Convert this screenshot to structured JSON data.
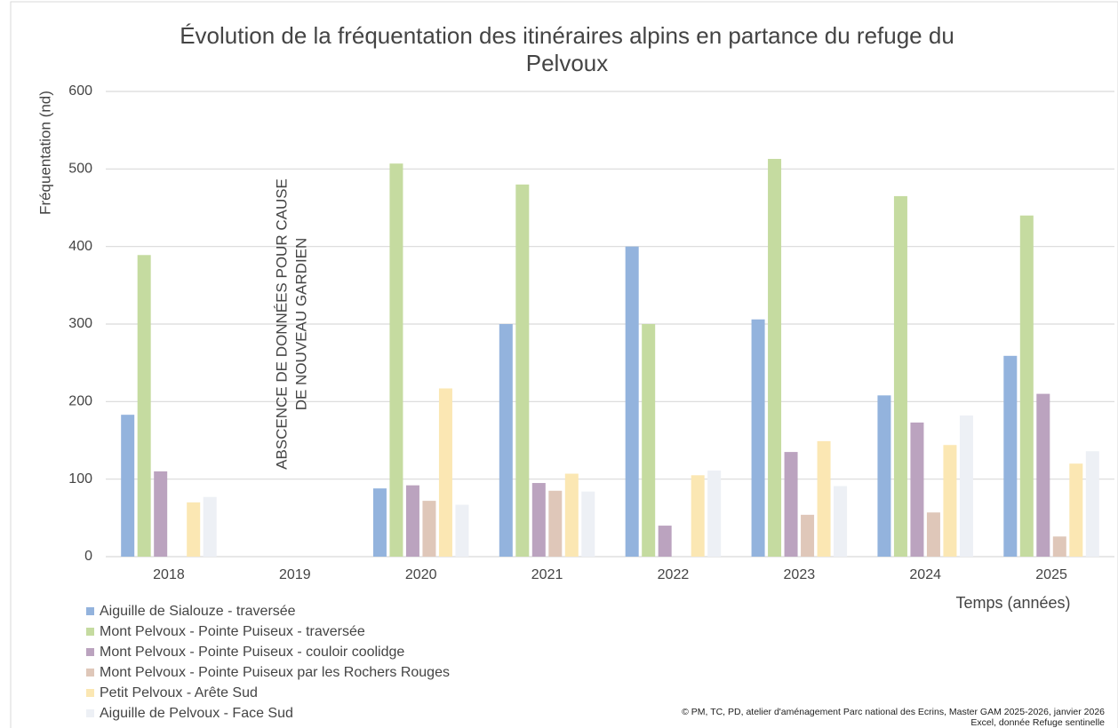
{
  "chart_data": {
    "type": "bar",
    "title": [
      "Évolution de la fréquentation des itinéraires alpins en partance du refuge du",
      "Pelvoux"
    ],
    "x_label": "Temps (années)",
    "y_label": "Fréquentation (nd)",
    "annotation": [
      "ABSCENCE DE DONNÉES POUR CAUSE",
      "DE NOUVEAU GARDIEN"
    ],
    "credits": [
      "© PM, TC, PD, atelier d'aménagement Parc national des Ecrins, Master GAM 2025-2026, janvier 2026",
      "Excel, donnée Refuge sentinelle"
    ],
    "categories": [
      "2018",
      "2019",
      "2020",
      "2021",
      "2022",
      "2023",
      "2024",
      "2025"
    ],
    "series": [
      {
        "name": "Aiguille de Sialouze - traversée",
        "color": "#93b3dd",
        "values": [
          183,
          null,
          88,
          300,
          400,
          306,
          208,
          259
        ]
      },
      {
        "name": "Mont Pelvoux - Pointe Puiseux - traversée",
        "color": "#c5dba0",
        "values": [
          389,
          null,
          507,
          480,
          300,
          513,
          465,
          440
        ]
      },
      {
        "name": "Mont Pelvoux - Pointe Puiseux - couloir coolidge",
        "color": "#bba3bf",
        "values": [
          110,
          null,
          92,
          95,
          40,
          135,
          173,
          210
        ]
      },
      {
        "name": "Mont Pelvoux - Pointe Puiseux par les Rochers Rouges",
        "color": "#dfc7b9",
        "values": [
          null,
          null,
          72,
          85,
          null,
          54,
          57,
          26
        ]
      },
      {
        "name": "Petit Pelvoux - Arête Sud",
        "color": "#fbe7b3",
        "values": [
          70,
          null,
          217,
          107,
          105,
          149,
          144,
          120
        ]
      },
      {
        "name": "Aiguille de Pelvoux - Face Sud",
        "color": "#edf0f5",
        "values": [
          77,
          null,
          67,
          84,
          111,
          91,
          182,
          136
        ]
      }
    ],
    "ylim": [
      0,
      600
    ],
    "yticks": [
      0,
      100,
      200,
      300,
      400,
      500,
      600
    ],
    "grid": true,
    "legend": "bottom-left"
  }
}
